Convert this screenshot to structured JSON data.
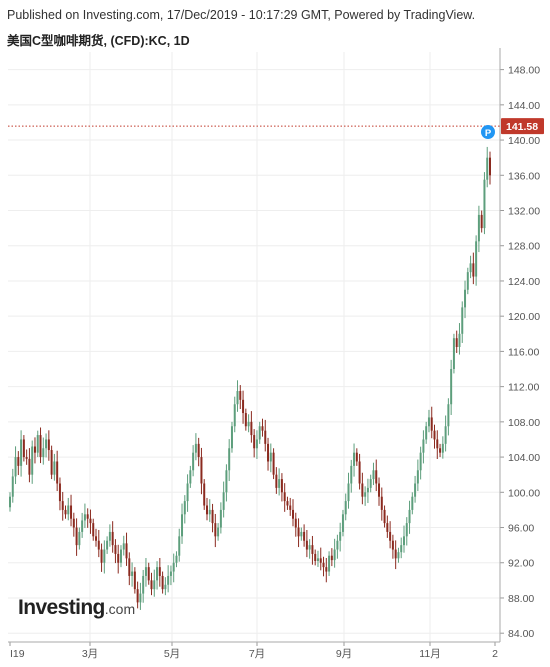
{
  "header": {
    "published": "Published on Investing.com, 17/Dec/2019 - 10:17:29 GMT, Powered by TradingView.",
    "symbol": "美国C型咖啡期货, (CFD):KC, 1D"
  },
  "logo": {
    "main": "Investing",
    "domain": ".com"
  },
  "colors": {
    "up": "#5d9e7c",
    "down": "#8b2a1f",
    "last_price": "#c0392b",
    "marker": "#2196f3"
  },
  "chart_data": {
    "type": "candlestick",
    "y_ticks": [
      "148.00",
      "144.00",
      "140.00",
      "136.00",
      "132.00",
      "128.00",
      "124.00",
      "120.00",
      "116.00",
      "112.00",
      "108.00",
      "104.00",
      "100.00",
      "96.00",
      "92.00",
      "88.00",
      "84.00"
    ],
    "ylim": [
      83,
      150
    ],
    "x_ticks": [
      "I19",
      "3月",
      "5月",
      "7月",
      "9月",
      "11月",
      "2"
    ],
    "last_price": 141.58,
    "last_price_label": "141.58",
    "marker_label": "P",
    "grid": true,
    "close": [
      99.5,
      101.8,
      104.0,
      103.0,
      106.0,
      104.0,
      103.8,
      102.0,
      105.2,
      104.5,
      106.5,
      104.0,
      105.0,
      106.0,
      104.8,
      102.0,
      103.5,
      101.0,
      99.0,
      98.0,
      97.5,
      98.5,
      97.0,
      96.0,
      94.0,
      95.5,
      96.8,
      97.5,
      97.0,
      96.5,
      95.0,
      94.5,
      93.5,
      92.0,
      93.5,
      94.5,
      95.5,
      94.0,
      93.0,
      92.0,
      93.5,
      94.2,
      92.5,
      90.5,
      91.0,
      89.0,
      87.5,
      88.5,
      90.5,
      91.5,
      90.0,
      89.0,
      90.0,
      91.5,
      90.5,
      89.0,
      89.5,
      90.5,
      91.0,
      92.0,
      92.8,
      95.0,
      97.5,
      99.0,
      101.0,
      102.5,
      104.5,
      105.5,
      104.0,
      101.0,
      98.5,
      97.5,
      98.0,
      96.5,
      95.0,
      96.0,
      98.0,
      100.0,
      102.5,
      105.0,
      107.5,
      110.0,
      111.5,
      110.5,
      109.0,
      107.5,
      108.0,
      106.5,
      105.0,
      106.0,
      107.5,
      107.0,
      105.5,
      103.5,
      104.5,
      102.0,
      100.5,
      101.5,
      100.0,
      99.0,
      98.5,
      98.0,
      97.0,
      96.0,
      95.0,
      95.5,
      94.5,
      93.5,
      94.0,
      93.0,
      92.2,
      92.5,
      92.0,
      91.5,
      91.0,
      92.8,
      92.3,
      93.5,
      94.5,
      95.5,
      97.5,
      99.0,
      101.0,
      103.0,
      104.5,
      103.5,
      101.0,
      99.5,
      100.0,
      100.5,
      101.5,
      102.5,
      101.0,
      99.5,
      98.0,
      96.5,
      95.5,
      94.5,
      93.5,
      92.5,
      93.2,
      94.0,
      95.0,
      96.5,
      98.0,
      99.5,
      101.0,
      102.5,
      104.5,
      106.0,
      107.5,
      108.5,
      107.0,
      106.0,
      105.0,
      104.5,
      105.5,
      107.5,
      110.0,
      114.0,
      117.5,
      116.5,
      118.0,
      121.0,
      123.0,
      125.0,
      126.0,
      124.5,
      128.5,
      131.5,
      130.0,
      135.5,
      138.0,
      136.0
    ]
  }
}
